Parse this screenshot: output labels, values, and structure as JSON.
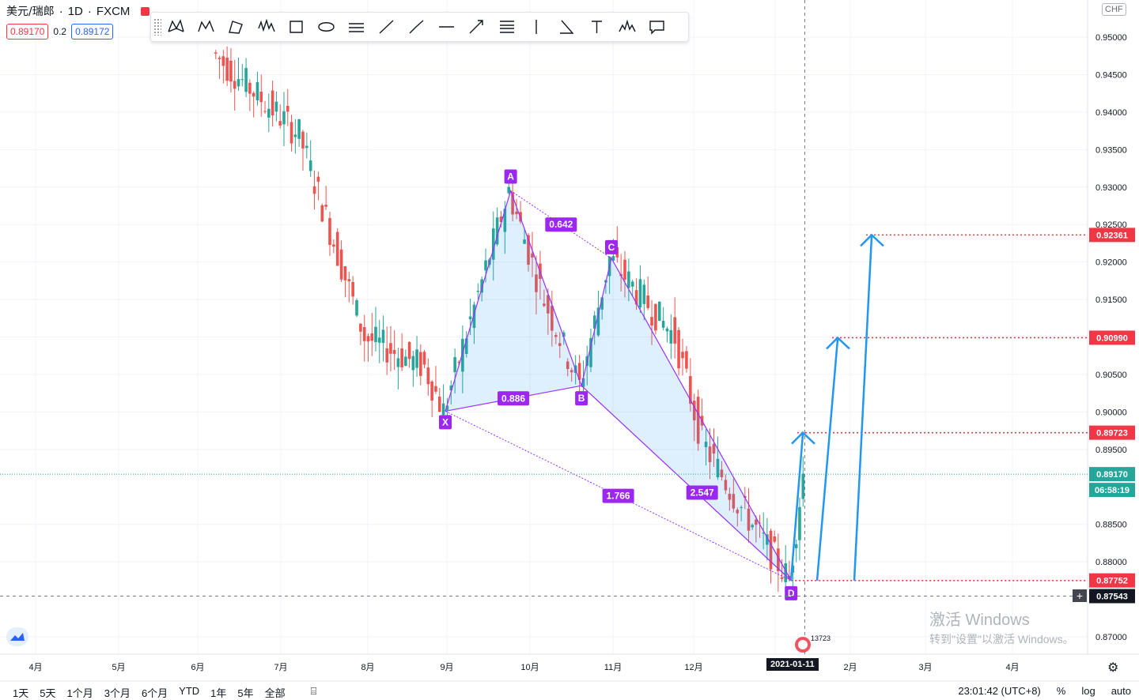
{
  "header": {
    "symbol": "美元/瑞郎",
    "interval": "1D",
    "exchange": "FXCM",
    "sell_price": "0.89170",
    "spread": "0.2",
    "buy_price": "0.89172"
  },
  "toolbar": {
    "tools": [
      "xabcd-pattern-icon",
      "cypher-pattern-icon",
      "abcd-pattern-icon",
      "elliott-wave-icon",
      "rectangle-icon",
      "ellipse-icon",
      "parallel-channel-icon",
      "trend-line-icon",
      "ray-icon",
      "horizontal-line-icon",
      "arrow-line-icon",
      "fib-retracement-icon",
      "vertical-line-icon",
      "angle-icon",
      "text-icon",
      "head-shoulders-icon",
      "callout-icon"
    ]
  },
  "currency_badge": "CHF",
  "price_axis": {
    "ticks": [
      "0.95000",
      "0.94500",
      "0.94000",
      "0.93500",
      "0.93000",
      "0.92500",
      "0.92000",
      "0.91500",
      "0.91000",
      "0.90500",
      "0.90000",
      "0.89500",
      "0.88500",
      "0.88000",
      "0.87000"
    ],
    "labels": [
      {
        "text": "0.92361",
        "value": 0.92361,
        "color": "#f23645"
      },
      {
        "text": "0.90990",
        "value": 0.9099,
        "color": "#f23645"
      },
      {
        "text": "0.89723",
        "value": 0.89723,
        "color": "#f23645"
      },
      {
        "text": "0.89170",
        "value": 0.8917,
        "color": "#26a69a"
      },
      {
        "text": "0.87752",
        "value": 0.87752,
        "color": "#f23645"
      },
      {
        "text": "0.87543",
        "value": 0.87543,
        "color": "#131722"
      }
    ],
    "countdown": "06:58:19"
  },
  "time_axis": {
    "ticks": [
      "4月",
      "5月",
      "6月",
      "7月",
      "8月",
      "9月",
      "10月",
      "11月",
      "12月",
      "2月",
      "3月",
      "4月"
    ],
    "crosshair_date": "2021-01-11"
  },
  "chart_data": {
    "type": "candlestick",
    "pattern": "XABCD",
    "points": [
      {
        "label": "X",
        "date": "2020-09-01",
        "price": 0.9001
      },
      {
        "label": "A",
        "date": "2020-09-25",
        "price": 0.9295
      },
      {
        "label": "B",
        "date": "2020-10-21",
        "price": 0.9035
      },
      {
        "label": "C",
        "date": "2020-11-01",
        "price": 0.9205
      },
      {
        "label": "D",
        "date": "2021-01-06",
        "price": 0.8775
      }
    ],
    "ratios": [
      "0.642",
      "0.886",
      "1.766",
      "2.547"
    ],
    "targets": [
      0.89723,
      0.9099,
      0.92361
    ],
    "last_price": 0.8917,
    "crosshair_price": 0.87543,
    "colors": {
      "up": "#26a69a",
      "down": "#ef5350",
      "pattern": "#9b30ff",
      "target": "#f23645",
      "arrow": "#2196f3"
    }
  },
  "footer": {
    "ranges": [
      "1天",
      "5天",
      "1个月",
      "3个月",
      "6个月",
      "YTD",
      "1年",
      "5年",
      "全部"
    ],
    "clock": "23:01:42 (UTC+8)",
    "percent": "%",
    "log": "log",
    "auto": "auto",
    "event_count": "13723"
  },
  "watermark": {
    "line1": "激活 Windows",
    "line2": "转到\"设置\"以激活 Windows。"
  }
}
